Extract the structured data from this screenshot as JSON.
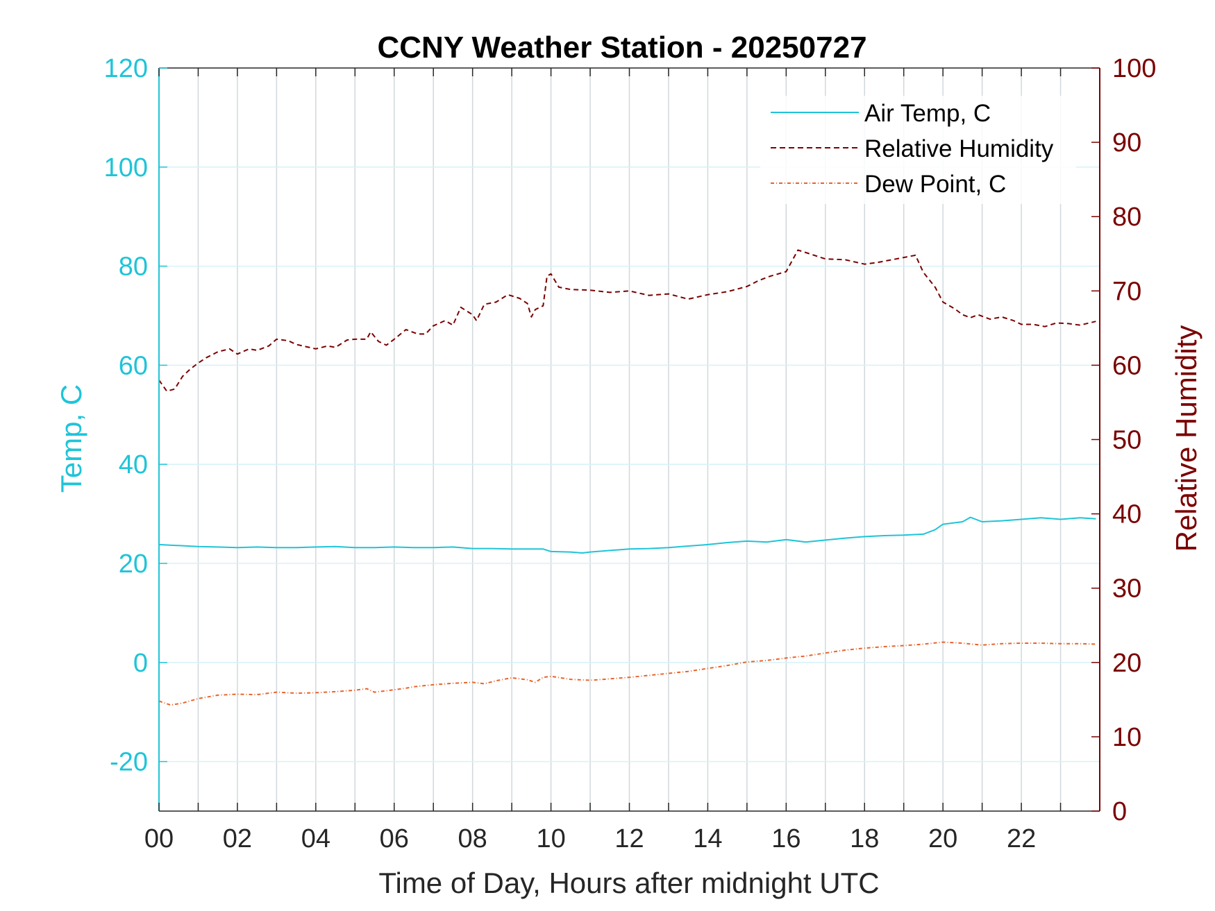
{
  "chart_data": {
    "type": "line",
    "title": "CCNY Weather Station - 20250727",
    "xlabel": "Time of Day, Hours after midnight UTC",
    "ylabel_left": "Temp, C",
    "ylabel_right": "Relative Humidity",
    "xlim": [
      0,
      24
    ],
    "ylim_left": [
      -30,
      120
    ],
    "ylim_right": [
      0,
      100
    ],
    "x_ticks": [
      "00",
      "02",
      "04",
      "06",
      "08",
      "10",
      "12",
      "14",
      "16",
      "18",
      "20",
      "22"
    ],
    "y_ticks_left": [
      "-20",
      "0",
      "20",
      "40",
      "60",
      "80",
      "100",
      "120"
    ],
    "y_ticks_right": [
      "0",
      "10",
      "20",
      "30",
      "40",
      "50",
      "60",
      "70",
      "80",
      "90",
      "100"
    ],
    "grid": true,
    "legend_position": "top-right",
    "colors": {
      "temp": "#1ec4d8",
      "humidity": "#7a0000",
      "dewpoint": "#e8632a",
      "grid": "#d0d8dc"
    },
    "series": [
      {
        "name": "Air Temp, C",
        "axis": "left",
        "style": "solid",
        "color": "#1ec4d8",
        "x": [
          0,
          0.5,
          1,
          1.5,
          2,
          2.5,
          3,
          3.5,
          4,
          4.5,
          5,
          5.5,
          6,
          6.5,
          7,
          7.5,
          8,
          8.5,
          9,
          9.5,
          9.8,
          10,
          10.5,
          10.8,
          11,
          11.5,
          12,
          12.5,
          13,
          13.5,
          14,
          14.5,
          15,
          15.5,
          16,
          16.5,
          17,
          17.5,
          18,
          18.5,
          19,
          19.5,
          19.8,
          20,
          20.5,
          20.7,
          21,
          21.5,
          22,
          22.5,
          23,
          23.5,
          23.9
        ],
        "y": [
          23.8,
          23.6,
          23.4,
          23.3,
          23.2,
          23.3,
          23.2,
          23.2,
          23.3,
          23.4,
          23.2,
          23.2,
          23.3,
          23.2,
          23.2,
          23.3,
          23.0,
          23.0,
          22.9,
          22.9,
          22.9,
          22.4,
          22.3,
          22.1,
          22.3,
          22.6,
          22.9,
          23.0,
          23.2,
          23.5,
          23.8,
          24.2,
          24.5,
          24.3,
          24.8,
          24.3,
          24.7,
          25.1,
          25.4,
          25.6,
          25.7,
          25.9,
          26.8,
          27.9,
          28.4,
          29.3,
          28.4,
          28.6,
          28.9,
          29.2,
          28.9,
          29.2,
          29.0
        ]
      },
      {
        "name": "Relative Humidity",
        "axis": "right",
        "style": "dashed",
        "color": "#7a0000",
        "x": [
          0,
          0.2,
          0.4,
          0.6,
          0.8,
          1,
          1.2,
          1.5,
          1.8,
          2,
          2.3,
          2.5,
          2.8,
          3,
          3.3,
          3.5,
          4,
          4.3,
          4.5,
          4.8,
          5,
          5.3,
          5.4,
          5.6,
          5.8,
          6,
          6.3,
          6.6,
          6.8,
          7,
          7.3,
          7.5,
          7.7,
          8,
          8.1,
          8.3,
          8.6,
          8.9,
          9.2,
          9.4,
          9.5,
          9.6,
          9.8,
          9.9,
          10,
          10.2,
          10.5,
          11,
          11.5,
          12,
          12.5,
          13,
          13.5,
          14,
          14.5,
          15,
          15.3,
          15.6,
          16,
          16.3,
          16.6,
          17,
          17.5,
          18,
          18.3,
          18.6,
          19,
          19.3,
          19.5,
          19.8,
          20,
          20.3,
          20.5,
          20.7,
          20.9,
          21.2,
          21.5,
          21.8,
          22,
          22.3,
          22.6,
          22.9,
          23.2,
          23.5,
          23.9
        ],
        "y": [
          58,
          56.5,
          56.8,
          58.5,
          59.5,
          60.3,
          61,
          61.8,
          62.2,
          61.5,
          62.2,
          62,
          62.6,
          63.5,
          63.3,
          62.8,
          62.2,
          62.6,
          62.4,
          63.4,
          63.5,
          63.5,
          64.5,
          63.2,
          62.7,
          63.5,
          64.8,
          64.2,
          64.2,
          65.3,
          66,
          65.4,
          67.8,
          66.8,
          66,
          68.2,
          68.5,
          69.5,
          69.0,
          68.3,
          66.5,
          67.5,
          68,
          72,
          72.3,
          70.5,
          70.2,
          70.1,
          69.8,
          70,
          69.4,
          69.6,
          68.9,
          69.5,
          69.9,
          70.6,
          71.4,
          72,
          72.6,
          75.5,
          75.0,
          74.3,
          74.2,
          73.6,
          73.8,
          74.1,
          74.5,
          74.8,
          72.5,
          70.5,
          68.5,
          67.6,
          66.8,
          66.4,
          66.8,
          66.2,
          66.5,
          66.0,
          65.5,
          65.5,
          65.2,
          65.7,
          65.6,
          65.4,
          65.9
        ]
      },
      {
        "name": "Dew Point, C",
        "axis": "left",
        "style": "dashdot",
        "color": "#e8632a",
        "x": [
          0,
          0.3,
          0.6,
          1,
          1.5,
          2,
          2.5,
          3,
          3.5,
          4,
          4.5,
          5,
          5.3,
          5.5,
          6,
          6.3,
          6.5,
          7,
          7.5,
          8,
          8.3,
          8.6,
          9,
          9.4,
          9.6,
          9.8,
          10,
          10.5,
          11,
          11.5,
          12,
          12.5,
          13,
          13.5,
          14,
          14.5,
          15,
          15.5,
          16,
          16.5,
          17,
          17.5,
          18,
          18.5,
          19,
          19.5,
          20,
          20.5,
          21,
          21.5,
          22,
          22.5,
          23,
          23.5,
          23.9
        ],
        "y": [
          -7.8,
          -8.6,
          -8.2,
          -7.3,
          -6.6,
          -6.4,
          -6.5,
          -6.0,
          -6.2,
          -6.1,
          -5.9,
          -5.6,
          -5.3,
          -6.0,
          -5.5,
          -5.2,
          -4.9,
          -4.5,
          -4.2,
          -4.0,
          -4.3,
          -3.7,
          -3.1,
          -3.5,
          -4.0,
          -3.0,
          -2.8,
          -3.4,
          -3.6,
          -3.3,
          -3.0,
          -2.6,
          -2.2,
          -1.8,
          -1.2,
          -0.6,
          0.1,
          0.4,
          0.9,
          1.3,
          1.9,
          2.5,
          2.9,
          3.2,
          3.4,
          3.7,
          4.1,
          3.9,
          3.5,
          3.8,
          3.9,
          3.9,
          3.8,
          3.8,
          3.7
        ]
      }
    ]
  }
}
